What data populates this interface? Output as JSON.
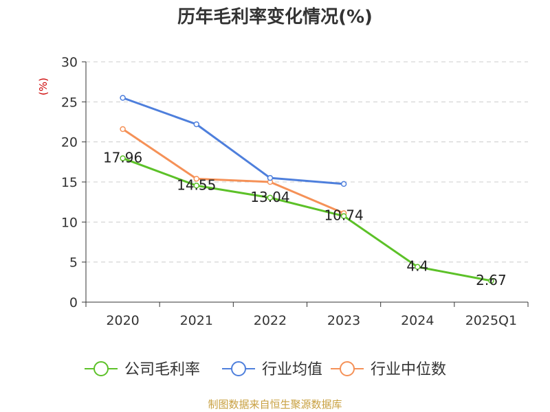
{
  "chart_data": {
    "type": "line",
    "title": "历年毛利率变化情况(%)",
    "ylabel": "(%)",
    "xlabel": "",
    "categories": [
      "2020",
      "2021",
      "2022",
      "2023",
      "2024",
      "2025Q1"
    ],
    "ylim": [
      0,
      30
    ],
    "yticks": [
      0,
      5,
      10,
      15,
      20,
      25,
      30
    ],
    "grid": true,
    "legend_position": "bottom",
    "series": [
      {
        "name": "公司毛利率",
        "color": "#5cc128",
        "values": [
          17.96,
          14.55,
          13.04,
          10.74,
          4.4,
          2.67
        ],
        "labels": [
          "17.96",
          "14.55",
          "13.04",
          "10.74",
          "4.4",
          "2.67"
        ]
      },
      {
        "name": "行业均值",
        "color": "#4e7fdc",
        "values": [
          25.5,
          22.2,
          15.5,
          14.75,
          null,
          null
        ]
      },
      {
        "name": "行业中位数",
        "color": "#f59157",
        "values": [
          21.6,
          15.4,
          15.0,
          11.1,
          null,
          null
        ]
      }
    ]
  },
  "footer": {
    "source": "制图数据来自恒生聚源数据库"
  }
}
